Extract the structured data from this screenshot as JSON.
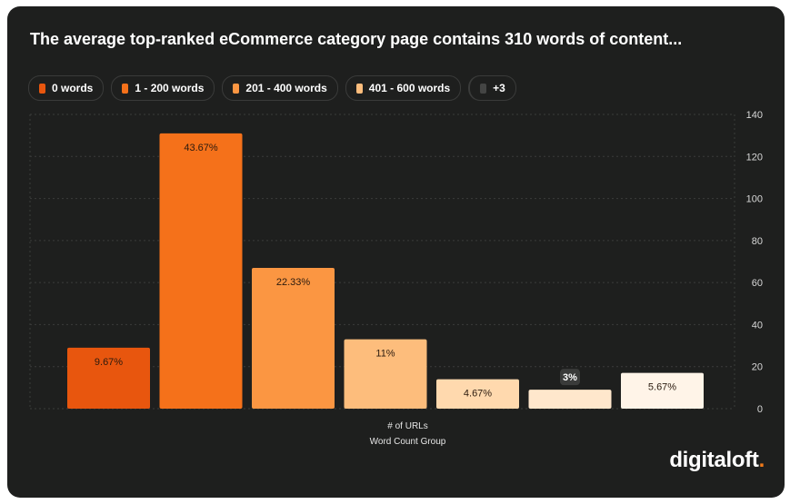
{
  "title": "The average top-ranked eCommerce category page contains 310 words of content...",
  "legend": [
    {
      "label": "0 words",
      "color": "#e8560e"
    },
    {
      "label": "1 - 200 words",
      "color": "#f5711a"
    },
    {
      "label": "201 - 400 words",
      "color": "#fb9642"
    },
    {
      "label": "401 - 600 words",
      "color": "#fdbd7c"
    },
    {
      "label": "+3",
      "color": "#444544"
    }
  ],
  "brand": {
    "name": "digitaloft",
    "dot": "."
  },
  "chart_data": {
    "type": "bar",
    "categories": [
      "0 words",
      "1 - 200 words",
      "201 - 400 words",
      "401 - 600 words",
      "",
      "",
      ""
    ],
    "values": [
      29,
      131,
      67,
      33,
      14,
      9,
      17
    ],
    "data_labels": [
      "9.67%",
      "43.67%",
      "22.33%",
      "11%",
      "4.67%",
      "3%",
      "5.67%"
    ],
    "colors": [
      "#e8560e",
      "#f5711a",
      "#fb9642",
      "#fdbd7c",
      "#ffd9ae",
      "#ffe7cc",
      "#fff4e8"
    ],
    "xlabel": "Word Count Group",
    "ylabel": "# of URLs",
    "ylim": [
      0,
      140
    ],
    "yticks": [
      0,
      20,
      40,
      60,
      80,
      100,
      120,
      140
    ],
    "y_axis_position": "right",
    "grid": true
  }
}
